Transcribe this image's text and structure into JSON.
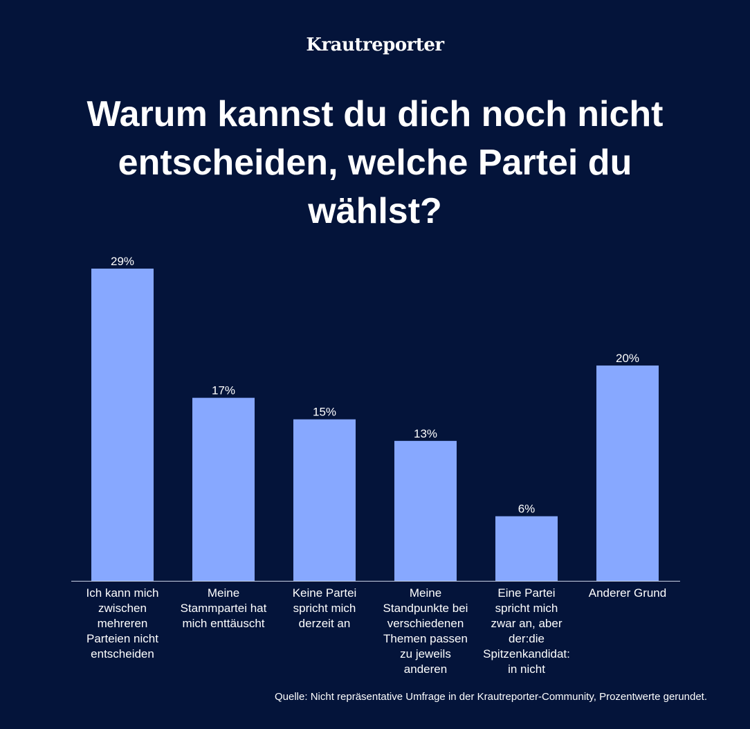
{
  "brand": "Krautreporter",
  "title": "Warum kannst du dich noch nicht entscheiden, welche Partei du wählst?",
  "source": "Quelle: Nicht repräsentative Umfrage in der Krautreporter-Community, Prozentwerte gerundet.",
  "colors": {
    "background": "#04143a",
    "bar": "#87a8ff",
    "text": "#ffffff",
    "axis": "#c9d3e6"
  },
  "chart_data": {
    "type": "bar",
    "categories": [
      [
        "Ich kann mich",
        "zwischen",
        "mehreren",
        "Parteien nicht",
        "entscheiden"
      ],
      [
        "Meine",
        "Stammpartei hat",
        "mich enttäuscht"
      ],
      [
        "Keine Partei",
        "spricht mich",
        "derzeit an"
      ],
      [
        "Meine",
        "Standpunkte bei",
        "verschiedenen",
        "Themen passen",
        "zu jeweils",
        "anderen"
      ],
      [
        "Eine Partei",
        "spricht mich",
        "zwar an, aber",
        "der:die",
        "Spitzenkandidat:",
        "in nicht"
      ],
      [
        "Anderer Grund"
      ]
    ],
    "values": [
      29,
      17,
      15,
      13,
      6,
      20
    ],
    "value_labels": [
      "29%",
      "17%",
      "15%",
      "13%",
      "6%",
      "20%"
    ],
    "ylim": [
      0,
      29
    ],
    "grid": false,
    "legend": "none"
  }
}
